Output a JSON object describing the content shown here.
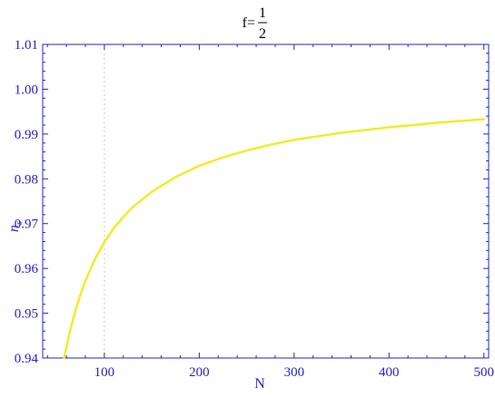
{
  "chart_data": {
    "type": "line",
    "title_prefix": "f=",
    "title_numerator": "1",
    "title_denominator": "2",
    "xlabel": "N",
    "ylabel_main": "n",
    "ylabel_sub": "s",
    "xlim": [
      35,
      505
    ],
    "ylim": [
      0.94,
      1.01
    ],
    "xticks": [
      100,
      200,
      300,
      400,
      500
    ],
    "yticks": [
      "0.94",
      "0.95",
      "0.96",
      "0.97",
      "0.98",
      "0.99",
      "1.00",
      "1.01"
    ],
    "grid": false,
    "reference_line_x": 100,
    "colors": {
      "axes": "#2424c8",
      "series": "#f2ec22",
      "reference": "#c8c8dc"
    },
    "series": [
      {
        "x": [
          57.5,
          60,
          65,
          70,
          75,
          80,
          90,
          100,
          110,
          120,
          130,
          150,
          175,
          200,
          225,
          250,
          275,
          300,
          325,
          350,
          375,
          400,
          425,
          450,
          475,
          500
        ],
        "y": [
          0.9396,
          0.9424,
          0.947,
          0.9509,
          0.9543,
          0.9572,
          0.9621,
          0.9659,
          0.969,
          0.9715,
          0.9737,
          0.9771,
          0.9804,
          0.9829,
          0.9848,
          0.9863,
          0.9876,
          0.9887,
          0.9895,
          0.9903,
          0.9909,
          0.9915,
          0.992,
          0.9925,
          0.9929,
          0.9933
        ]
      }
    ]
  }
}
